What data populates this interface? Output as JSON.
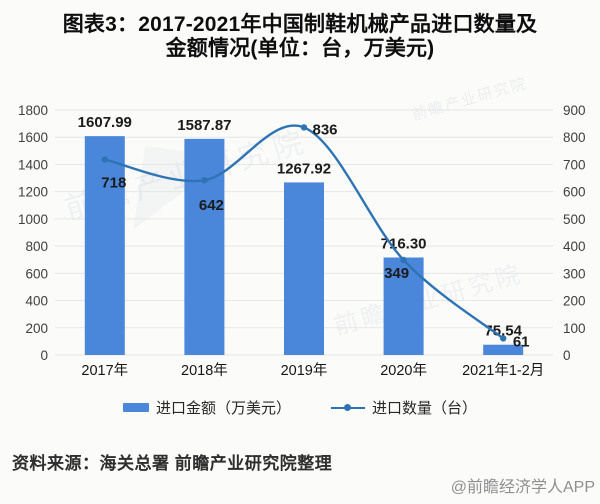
{
  "title": {
    "line1": "图表3：2017-2021年中国制鞋机械产品进口数量及",
    "line2": "金额情况(单位：台，万美元)"
  },
  "chart_data": {
    "type": "bar",
    "subtype": "bar-line-combo",
    "title": "图表3：2017-2021年中国制鞋机械产品进口数量及金额情况(单位：台，万美元)",
    "categories": [
      "2017年",
      "2018年",
      "2019年",
      "2020年",
      "2021年1-2月"
    ],
    "series": [
      {
        "name": "进口金额（万美元）",
        "kind": "bar",
        "axis": "left",
        "values": [
          1607.99,
          1587.87,
          1267.92,
          716.3,
          75.54
        ],
        "labels": [
          "1607.99",
          "1587.87",
          "1267.92",
          "716.30",
          "75.54"
        ]
      },
      {
        "name": "进口数量（台）",
        "kind": "line",
        "axis": "right",
        "values": [
          718,
          642,
          836,
          349,
          61
        ],
        "labels": [
          "718",
          "642",
          "836",
          "349",
          "61"
        ]
      }
    ],
    "left_axis": {
      "min": 0,
      "max": 1800,
      "step": 200,
      "ticks": [
        0,
        200,
        400,
        600,
        800,
        1000,
        1200,
        1400,
        1600,
        1800
      ]
    },
    "right_axis": {
      "min": 0,
      "max": 900,
      "step": 100,
      "ticks": [
        0,
        100,
        200,
        300,
        400,
        500,
        600,
        700,
        800,
        900
      ]
    },
    "grid": true,
    "legend_position": "bottom"
  },
  "legend": {
    "bar_label": "进口金额（万美元）",
    "line_label": "进口数量（台）"
  },
  "footer": {
    "source": "资料来源：海关总署 前瞻产业研究院整理",
    "credit": "@前瞻经济学人APP"
  },
  "watermark": {
    "text": "前瞻产业研究院",
    "logo_glyph": "◤"
  },
  "colors": {
    "bar": "#4A86DA",
    "line": "#2E74B5",
    "grid": "#e6e6e6",
    "axis_text": "#3f3f3f",
    "label_text": "#1b1b1b"
  }
}
